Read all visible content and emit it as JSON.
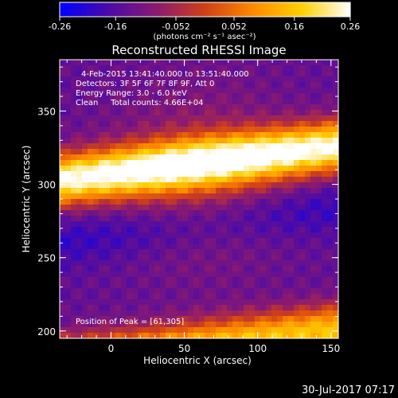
{
  "chart_data": {
    "type": "heatmap",
    "title": "Reconstructed RHESSI Image",
    "xlabel": "Heliocentric X (arcsec)",
    "ylabel": "Heliocentric Y (arcsec)",
    "xlim": [
      -35,
      155
    ],
    "ylim": [
      195,
      385
    ],
    "xticks": [
      0,
      50,
      100,
      150
    ],
    "yticks": [
      200,
      250,
      300,
      350
    ],
    "colorbar": {
      "label": "(photons cm⁻² s⁻¹ asec⁻²)",
      "range": [
        -0.26,
        0.26
      ],
      "ticks": [
        "-0.26",
        "-0.16",
        "-0.052",
        "0.052",
        "0.16",
        "0.26"
      ],
      "colormap": [
        "#0000ff",
        "#4a0aa8",
        "#8a1a70",
        "#d04018",
        "#ff8a00",
        "#ffd000",
        "#ffffff"
      ]
    },
    "annotations": [
      "4-Feb-2015 13:41:40.000 to 13:51:40.000",
      "Detectors: 3F 5F 6F 7F 8F 9F, Att 0",
      "Energy Range: 3.0 - 6.0 keV",
      "Clean     Total counts: 4.66E+04",
      "Position of Peak = [61,305]"
    ],
    "peak": {
      "x": 61,
      "y": 305,
      "value": 0.26
    },
    "bands": [
      {
        "type": "bright",
        "y_at_xmin": 303,
        "y_at_xmax": 326,
        "half_width": 17,
        "peak": 0.26
      },
      {
        "type": "bright",
        "y_at_xmin": 178,
        "y_at_xmax": 201,
        "half_width": 17,
        "peak": 0.16
      },
      {
        "type": "dark",
        "y_at_xmin": 261,
        "y_at_xmax": 284,
        "half_width": 18,
        "peak": -0.26
      }
    ]
  },
  "footer": {
    "timestamp": "30-Jul-2017 07:17"
  }
}
